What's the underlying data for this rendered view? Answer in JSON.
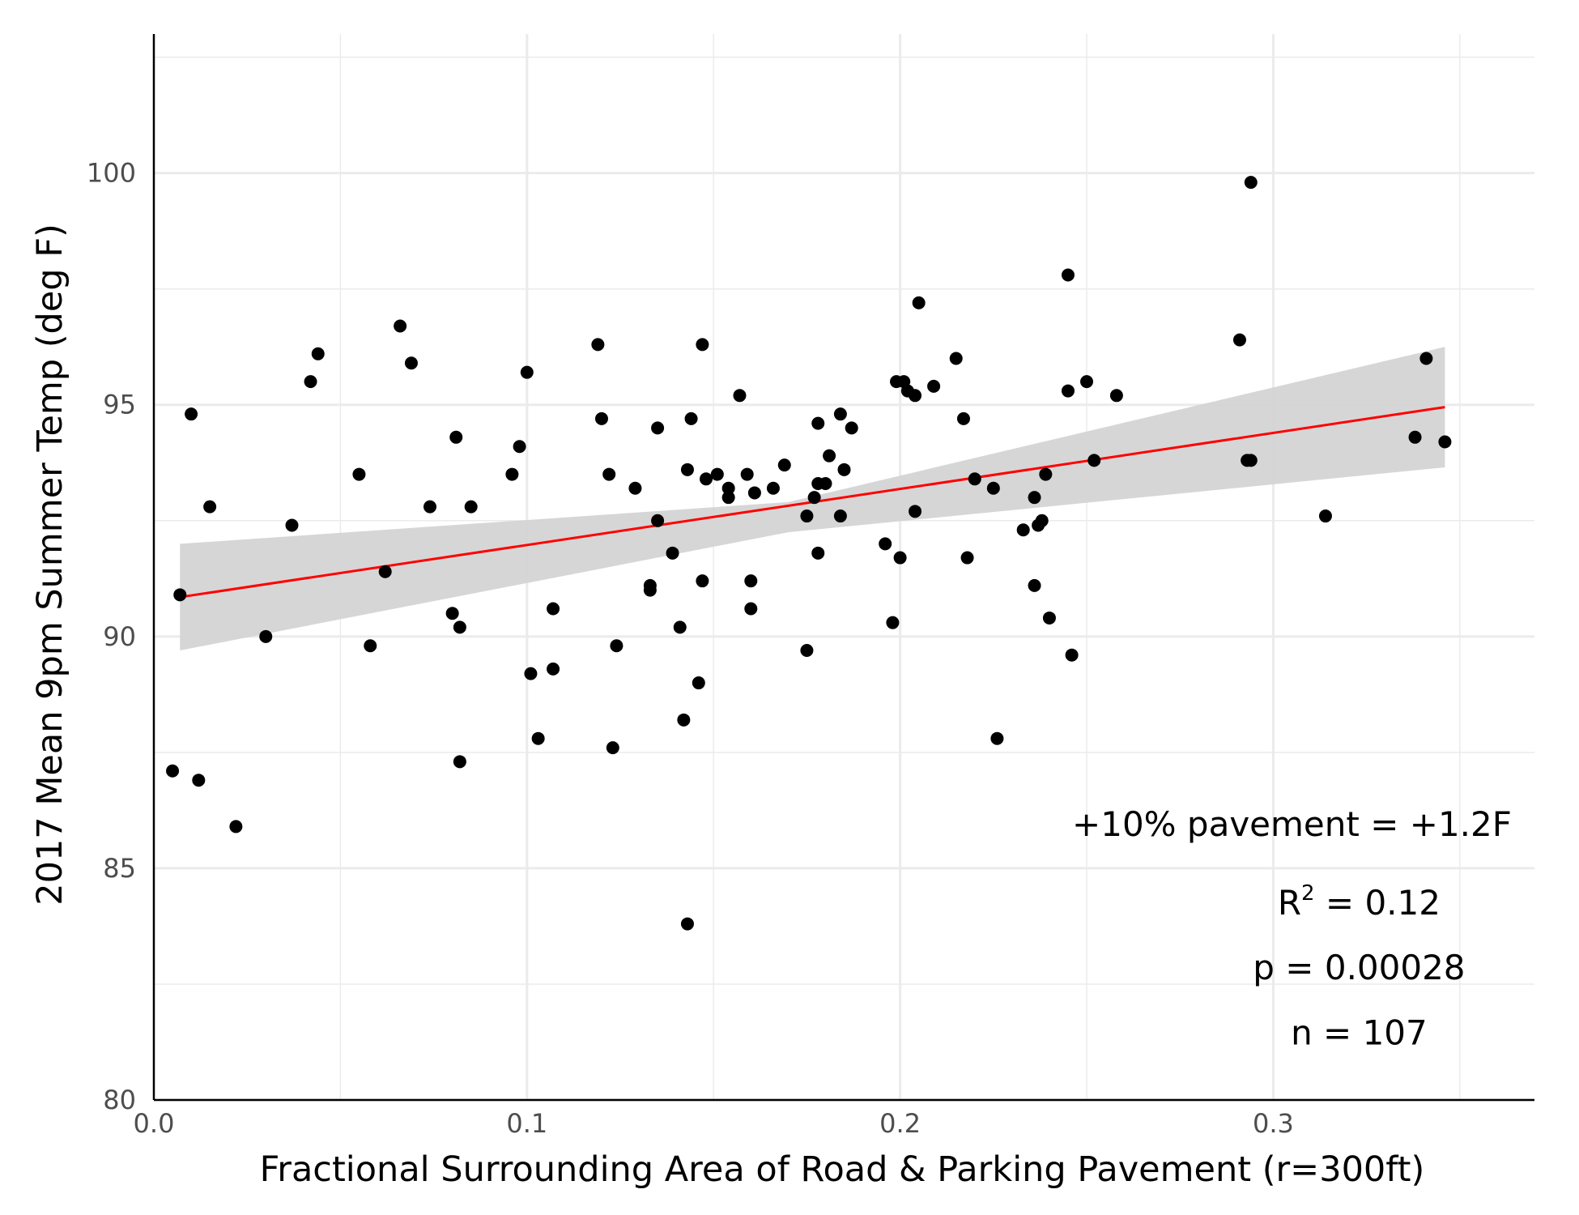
{
  "chart_data": {
    "type": "scatter",
    "title": "",
    "xlabel": "Fractional Surrounding Area of Road & Parking Pavement (r=300ft)",
    "ylabel": "2017 Mean 9pm Summer Temp (deg F)",
    "xlim": [
      0.0,
      0.37
    ],
    "ylim": [
      80,
      103
    ],
    "x_ticks": [
      0.0,
      0.1,
      0.2,
      0.3
    ],
    "x_tick_labels": [
      "0.0",
      "0.1",
      "0.2",
      "0.3"
    ],
    "y_ticks": [
      80,
      85,
      90,
      95,
      100
    ],
    "y_tick_labels": [
      "80",
      "85",
      "90",
      "95",
      "100"
    ],
    "grid": true,
    "colors": {
      "points": "#000000",
      "fit_line": "#ff0000",
      "confidence_band": "#d4d4d4",
      "grid": "#ebebeb"
    },
    "points": [
      [
        0.005,
        87.1
      ],
      [
        0.007,
        90.9
      ],
      [
        0.01,
        94.8
      ],
      [
        0.012,
        86.9
      ],
      [
        0.015,
        92.8
      ],
      [
        0.022,
        85.9
      ],
      [
        0.03,
        90.0
      ],
      [
        0.037,
        92.4
      ],
      [
        0.042,
        95.5
      ],
      [
        0.044,
        96.1
      ],
      [
        0.055,
        93.5
      ],
      [
        0.058,
        89.8
      ],
      [
        0.062,
        91.4
      ],
      [
        0.066,
        96.7
      ],
      [
        0.069,
        95.9
      ],
      [
        0.074,
        92.8
      ],
      [
        0.08,
        90.5
      ],
      [
        0.081,
        94.3
      ],
      [
        0.082,
        90.2
      ],
      [
        0.082,
        87.3
      ],
      [
        0.085,
        92.8
      ],
      [
        0.096,
        93.5
      ],
      [
        0.098,
        94.1
      ],
      [
        0.1,
        95.7
      ],
      [
        0.101,
        89.2
      ],
      [
        0.103,
        87.8
      ],
      [
        0.107,
        90.6
      ],
      [
        0.107,
        89.3
      ],
      [
        0.119,
        96.3
      ],
      [
        0.12,
        94.7
      ],
      [
        0.122,
        93.5
      ],
      [
        0.123,
        87.6
      ],
      [
        0.124,
        89.8
      ],
      [
        0.129,
        93.2
      ],
      [
        0.133,
        91.1
      ],
      [
        0.133,
        91.0
      ],
      [
        0.135,
        94.5
      ],
      [
        0.135,
        92.5
      ],
      [
        0.139,
        91.8
      ],
      [
        0.141,
        90.2
      ],
      [
        0.142,
        88.2
      ],
      [
        0.143,
        93.6
      ],
      [
        0.143,
        83.8
      ],
      [
        0.144,
        94.7
      ],
      [
        0.146,
        89.0
      ],
      [
        0.147,
        96.3
      ],
      [
        0.147,
        91.2
      ],
      [
        0.148,
        93.4
      ],
      [
        0.151,
        93.5
      ],
      [
        0.154,
        93.2
      ],
      [
        0.154,
        93.0
      ],
      [
        0.157,
        95.2
      ],
      [
        0.159,
        93.5
      ],
      [
        0.16,
        91.2
      ],
      [
        0.16,
        90.6
      ],
      [
        0.161,
        93.1
      ],
      [
        0.166,
        93.2
      ],
      [
        0.169,
        93.7
      ],
      [
        0.175,
        92.6
      ],
      [
        0.175,
        89.7
      ],
      [
        0.177,
        93.0
      ],
      [
        0.178,
        94.6
      ],
      [
        0.178,
        93.3
      ],
      [
        0.178,
        91.8
      ],
      [
        0.18,
        93.3
      ],
      [
        0.181,
        93.9
      ],
      [
        0.184,
        94.8
      ],
      [
        0.184,
        92.6
      ],
      [
        0.185,
        93.6
      ],
      [
        0.187,
        94.5
      ],
      [
        0.196,
        92.0
      ],
      [
        0.198,
        90.3
      ],
      [
        0.199,
        95.5
      ],
      [
        0.2,
        91.7
      ],
      [
        0.201,
        95.5
      ],
      [
        0.202,
        95.3
      ],
      [
        0.204,
        95.2
      ],
      [
        0.204,
        92.7
      ],
      [
        0.205,
        97.2
      ],
      [
        0.209,
        95.4
      ],
      [
        0.215,
        96.0
      ],
      [
        0.217,
        94.7
      ],
      [
        0.218,
        91.7
      ],
      [
        0.22,
        93.4
      ],
      [
        0.225,
        93.2
      ],
      [
        0.226,
        87.8
      ],
      [
        0.233,
        92.3
      ],
      [
        0.236,
        93.0
      ],
      [
        0.236,
        91.1
      ],
      [
        0.237,
        92.4
      ],
      [
        0.238,
        92.5
      ],
      [
        0.239,
        93.5
      ],
      [
        0.24,
        90.4
      ],
      [
        0.245,
        95.3
      ],
      [
        0.245,
        97.8
      ],
      [
        0.246,
        89.6
      ],
      [
        0.25,
        95.5
      ],
      [
        0.252,
        93.8
      ],
      [
        0.258,
        95.2
      ],
      [
        0.291,
        96.4
      ],
      [
        0.293,
        93.8
      ],
      [
        0.294,
        93.8
      ],
      [
        0.294,
        99.8
      ],
      [
        0.314,
        92.6
      ],
      [
        0.338,
        94.3
      ],
      [
        0.341,
        96.0
      ],
      [
        0.346,
        94.2
      ]
    ],
    "fit_line": {
      "x": [
        0.007,
        0.346
      ],
      "y": [
        90.85,
        94.95
      ]
    },
    "confidence_band": {
      "x": [
        0.007,
        0.17,
        0.346
      ],
      "lower": [
        89.7,
        92.25,
        93.65
      ],
      "upper": [
        92.0,
        92.9,
        96.25
      ]
    },
    "annotations": [
      {
        "id": "slope",
        "text": "+10% pavement = +1.2F",
        "x": 0.305,
        "y": 85.7
      },
      {
        "id": "r2",
        "prefix": "R",
        "sup": "2",
        "text": " = 0.12",
        "x": 0.323,
        "y": 84.0
      },
      {
        "id": "pvalue",
        "text": "p = 0.00028",
        "x": 0.323,
        "y": 82.6
      },
      {
        "id": "n",
        "text": "n = 107",
        "x": 0.323,
        "y": 81.2
      }
    ]
  }
}
